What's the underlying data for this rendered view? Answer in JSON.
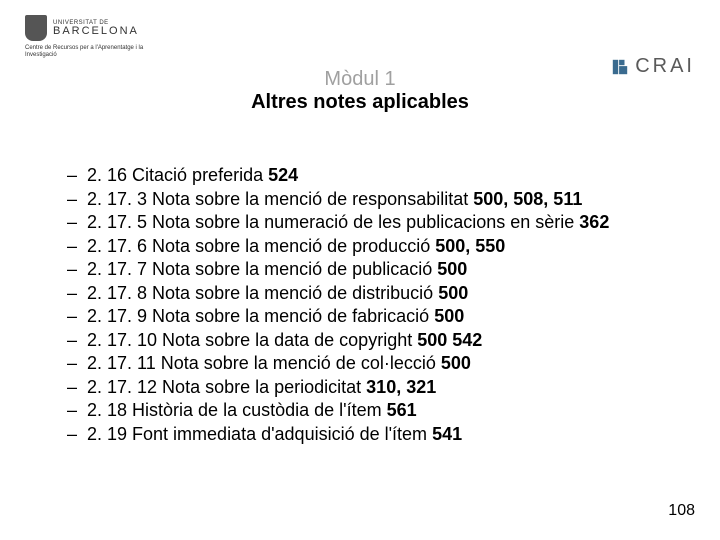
{
  "header": {
    "ub_small": "UNIVERSITAT DE",
    "ub_big": "BARCELONA",
    "crai_subtitle": "Centre de Recursos per a l'Aprenentatge i la Investigació",
    "crai_label": "CRAI"
  },
  "title": {
    "module": "Mòdul 1",
    "subtitle": "Altres notes aplicables"
  },
  "items": [
    {
      "text": "2. 16 Citació preferida ",
      "bold": "524"
    },
    {
      "text": "2. 17. 3 Nota sobre la menció de responsabilitat ",
      "bold": "500, 508, 511"
    },
    {
      "text": "2. 17. 5 Nota sobre la numeració de les publicacions en sèrie ",
      "bold": "362"
    },
    {
      "text": "2. 17. 6 Nota sobre la menció de producció ",
      "bold": "500, 550"
    },
    {
      "text": "2. 17. 7 Nota sobre la menció de publicació ",
      "bold": "500"
    },
    {
      "text": "2. 17. 8 Nota sobre la menció de distribució ",
      "bold": "500"
    },
    {
      "text": "2. 17. 9 Nota sobre la menció de fabricació ",
      "bold": "500"
    },
    {
      "text": "2. 17. 10 Nota sobre la data de copyright ",
      "bold": "500 542"
    },
    {
      "text": "2. 17. 11 Nota sobre la menció de col·lecció ",
      "bold": "500"
    },
    {
      "text": "2. 17. 12 Nota sobre la periodicitat ",
      "bold": "310, 321"
    },
    {
      "text": "2. 18 Història de la custòdia de l'ítem ",
      "bold": "561"
    },
    {
      "text": "2. 19 Font immediata d'adquisició de l'ítem ",
      "bold": "541"
    }
  ],
  "page_number": "108",
  "colors": {
    "crai_icon_fill": "#3a6b8f",
    "module_gray": "#a0a0a0"
  }
}
